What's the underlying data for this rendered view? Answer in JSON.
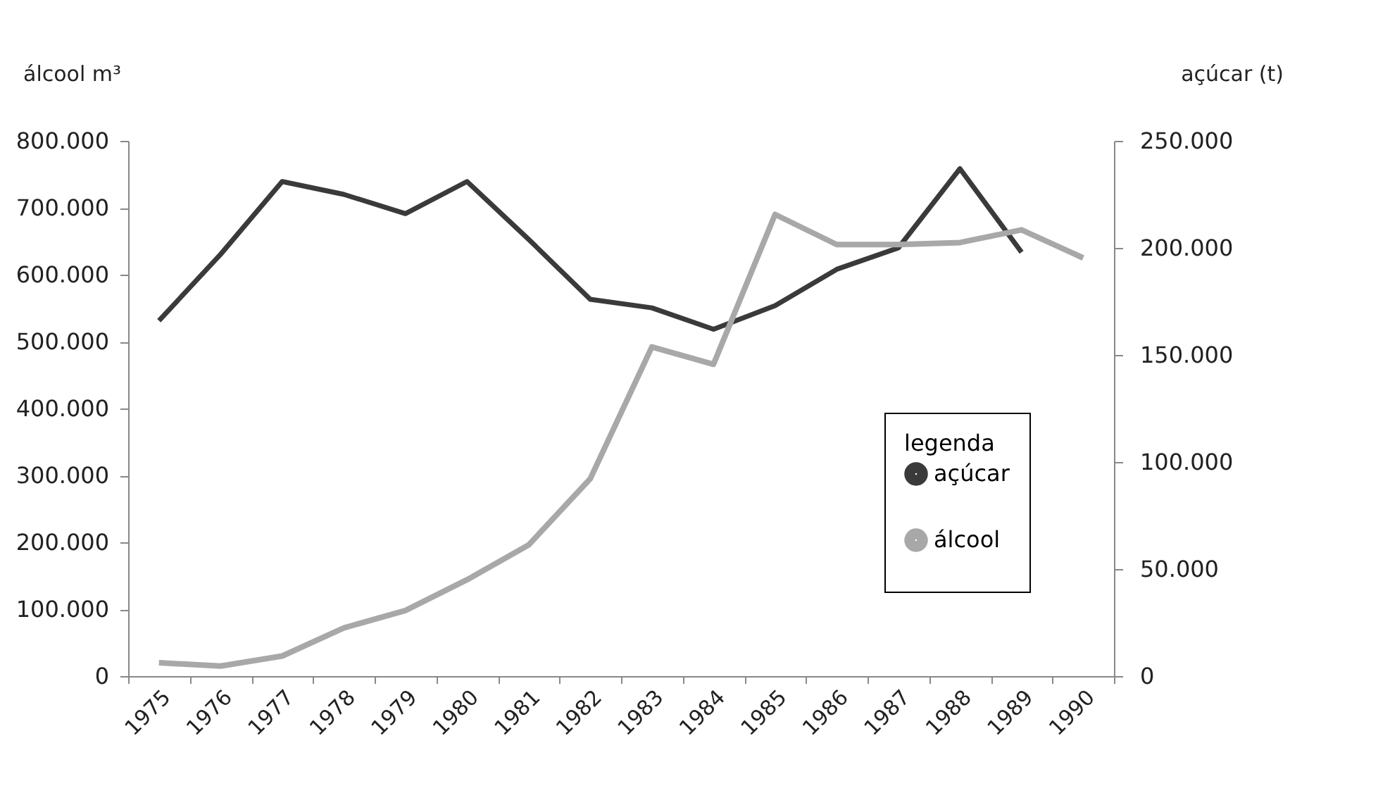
{
  "chart_data": {
    "type": "line",
    "ylabel": "álcool m³",
    "y2label": "açúcar (t)",
    "legend_title": "legenda",
    "legend": "bottom right",
    "grid": false,
    "line_style": "solid",
    "categories": [
      "1975",
      "1976",
      "1977",
      "1978",
      "1979",
      "1980",
      "1981",
      "1982",
      "1983",
      "1984",
      "1985",
      "1986",
      "1987",
      "1988",
      "1989",
      "1990"
    ],
    "series": [
      {
        "name": "açúcar",
        "color": "#3a3a3a",
        "axis": "y2",
        "values": [
          166000,
          197000,
          231000,
          225000,
          216000,
          231000,
          204000,
          176000,
          172000,
          162000,
          173000,
          190000,
          200000,
          237000,
          198000,
          null
        ]
      },
      {
        "name": "álcool",
        "color": "#a8a8a8",
        "values": [
          20000,
          15000,
          30000,
          72000,
          98000,
          144000,
          196000,
          295000,
          492000,
          466000,
          690000,
          645000,
          645000,
          648000,
          667000,
          625000
        ]
      }
    ],
    "ylim": [
      0,
      800000
    ],
    "yticks": [
      {
        "value": 0,
        "label": "0"
      },
      {
        "value": 100000,
        "label": "100.000"
      },
      {
        "value": 200000,
        "label": "200.000"
      },
      {
        "value": 300000,
        "label": "300.000"
      },
      {
        "value": 400000,
        "label": "400.000"
      },
      {
        "value": 500000,
        "label": "500.000"
      },
      {
        "value": 600000,
        "label": "600.000"
      },
      {
        "value": 700000,
        "label": "700.000"
      },
      {
        "value": 800000,
        "label": "800.000"
      }
    ],
    "y2lim": [
      0,
      250000
    ],
    "y2ticks": [
      {
        "value": 0,
        "label": "0"
      },
      {
        "value": 50000,
        "label": "50.000"
      },
      {
        "value": 100000,
        "label": "100.000"
      },
      {
        "value": 150000,
        "label": "150.000"
      },
      {
        "value": 200000,
        "label": "200.000"
      },
      {
        "value": 250000,
        "label": "250.000"
      }
    ]
  }
}
